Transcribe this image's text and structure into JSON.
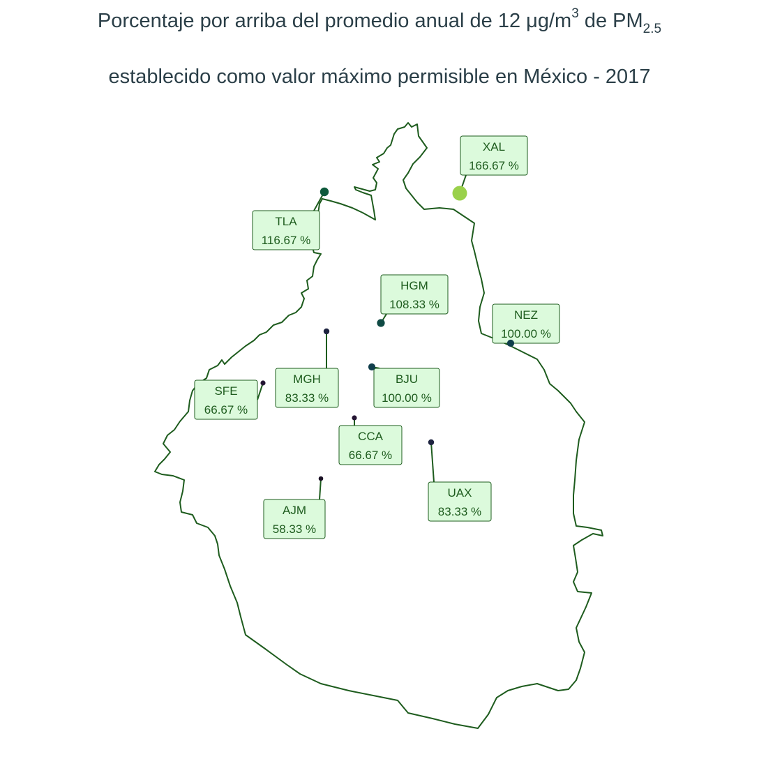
{
  "title": {
    "line1_pre": "Porcentaje por arriba del promedio anual de 12 ",
    "unit_mu": "μ",
    "unit_g": "g/m",
    "unit_sup": "3",
    "line1_mid": " de PM",
    "unit_sub": "2.5",
    "line2": "establecido como valor máximo permisible en México - 2017"
  },
  "colors": {
    "boundary": "#1e5c1e",
    "label_fill": "#dcfadc",
    "label_text": "#1e5c1e",
    "title": "#2b3f48"
  },
  "stations": [
    {
      "code": "XAL",
      "value": "166.67 %",
      "pct": 166.67,
      "color": "#9ad14b"
    },
    {
      "code": "TLA",
      "value": "116.67 %",
      "pct": 116.67,
      "color": "#0f5a3c"
    },
    {
      "code": "HGM",
      "value": "108.33 %",
      "pct": 108.33,
      "color": "#0f4a44"
    },
    {
      "code": "NEZ",
      "value": "100.00 %",
      "pct": 100.0,
      "color": "#103e4c"
    },
    {
      "code": "BJU",
      "value": "100.00 %",
      "pct": 100.0,
      "color": "#103e4c"
    },
    {
      "code": "MGH",
      "value": "83.33 %",
      "pct": 83.33,
      "color": "#1e2440"
    },
    {
      "code": "UAX",
      "value": "83.33 %",
      "pct": 83.33,
      "color": "#1e2440"
    },
    {
      "code": "SFE",
      "value": "66.67 %",
      "pct": 66.67,
      "color": "#241533"
    },
    {
      "code": "CCA",
      "value": "66.67 %",
      "pct": 66.67,
      "color": "#241533"
    },
    {
      "code": "AJM",
      "value": "58.33 %",
      "pct": 58.33,
      "color": "#1a1024"
    }
  ]
}
